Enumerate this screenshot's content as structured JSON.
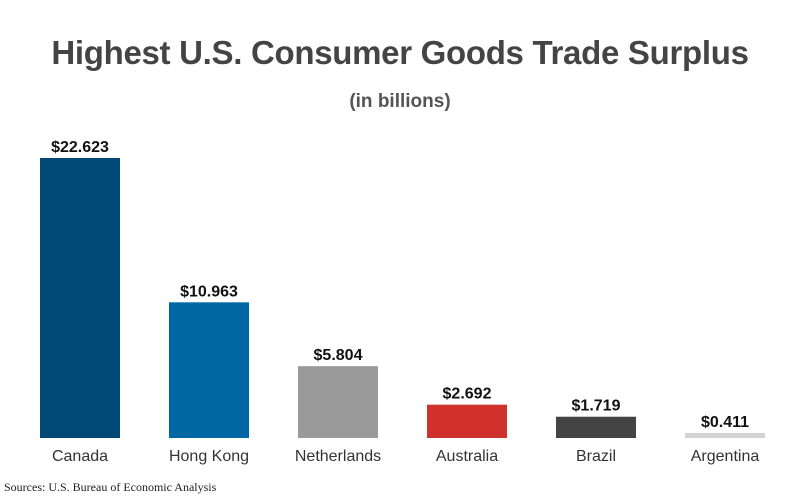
{
  "chart_data": {
    "type": "bar",
    "title": "Highest U.S. Consumer Goods Trade Surplus",
    "subtitle": "(in billions)",
    "categories": [
      "Canada",
      "Hong Kong",
      "Netherlands",
      "Australia",
      "Brazil",
      "Argentina"
    ],
    "values": [
      22.623,
      10.963,
      5.804,
      2.692,
      1.719,
      0.411
    ],
    "value_labels": [
      "$22.623",
      "$10.963",
      "$5.804",
      "$2.692",
      "$1.719",
      "$0.411"
    ],
    "colors": [
      "#004876",
      "#0067a5",
      "#9a9a9a",
      "#d0312d",
      "#444444",
      "#d3d3d3"
    ],
    "xlabel": "",
    "ylabel": "",
    "ylim": [
      0,
      22.623
    ],
    "grid": false,
    "legend": "none"
  },
  "source": "Sources: U.S. Bureau of Economic Analysis"
}
